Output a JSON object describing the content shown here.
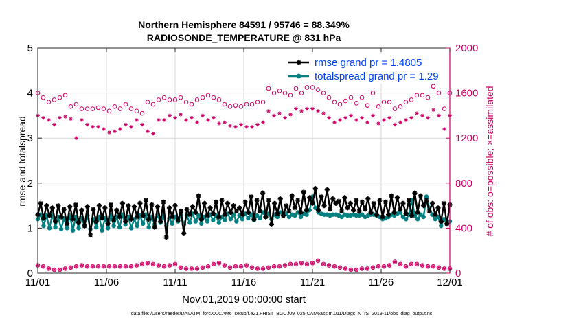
{
  "chart_data": {
    "type": "line",
    "title": "Northern Hemisphere 84591 / 95746 = 88.349%",
    "subtitle": "RADIOSONDE_TEMPERATURE @ 831 hPa",
    "xlabel": "Nov.01,2019 00:00:00 start",
    "ylabel_left": "rmse and totalspread",
    "ylabel_right": "# of obs: o=possible; ×=assimilated",
    "footnote": "data file: /Users/raeder/DAI/ATM_forcXX/CAM6_setup/f.e21.FHIST_BGC.f09_025.CAM6assim.011/Diags_NTrS_2019-11/obs_diag_output.nc",
    "xlim": [
      0,
      30
    ],
    "ylim_left": [
      0,
      5
    ],
    "ylim_right": [
      0,
      2000
    ],
    "x_ticks": [
      0,
      5,
      10,
      15,
      20,
      25,
      30
    ],
    "x_tick_labels": [
      "11/01",
      "11/06",
      "11/11",
      "11/16",
      "11/21",
      "11/26",
      "12/01"
    ],
    "y_ticks_left": [
      0,
      1,
      2,
      3,
      4,
      5
    ],
    "y_ticks_right": [
      0,
      400,
      800,
      1200,
      1600,
      2000
    ],
    "grid": true,
    "legend_position": "top-right",
    "colors": {
      "rmse": "#000000",
      "spread": "#008080",
      "obs": "#cc0066",
      "legend_text": "#0044ee"
    },
    "series": [
      {
        "name": "rmse grand pr = 1.4805",
        "color": "#000000",
        "marker": "star",
        "values": [
          1.3,
          1.55,
          1.22,
          1.5,
          1.28,
          1.45,
          1.15,
          1.5,
          1.25,
          1.42,
          1.1,
          1.48,
          1.2,
          1.52,
          1.12,
          1.4,
          1.05,
          1.48,
          0.85,
          1.42,
          1.15,
          1.5,
          1.22,
          1.45,
          1.1,
          1.52,
          1.18,
          1.4,
          1.25,
          1.55,
          1.15,
          1.5,
          1.2,
          1.48,
          1.25,
          1.55,
          1.28,
          1.62,
          1.2,
          1.52,
          1.02,
          1.48,
          1.15,
          1.58,
          0.8,
          1.45,
          1.25,
          1.5,
          1.18,
          1.38,
          0.88,
          1.42,
          1.3,
          1.48,
          1.35,
          1.72,
          1.2,
          1.55,
          1.28,
          1.45,
          1.32,
          1.58,
          1.25,
          1.62,
          1.3,
          1.55,
          1.35,
          1.5,
          1.38,
          1.45,
          1.3,
          1.58,
          1.35,
          1.7,
          1.2,
          1.62,
          1.38,
          1.78,
          1.25,
          1.62,
          1.08,
          1.55,
          1.32,
          1.65,
          1.28,
          1.5,
          1.38,
          1.72,
          1.45,
          1.62,
          1.35,
          1.8,
          1.4,
          1.68,
          1.55,
          1.88,
          1.4,
          1.7,
          1.5,
          1.85,
          1.42,
          1.65,
          1.55,
          1.6,
          1.38,
          1.68,
          1.45,
          1.55,
          1.4,
          1.62,
          1.38,
          1.58,
          1.42,
          1.65,
          1.35,
          1.55,
          1.3,
          1.62,
          1.25,
          1.58,
          1.3,
          1.72,
          1.35,
          1.68,
          1.42,
          1.55,
          1.32,
          1.62,
          1.28,
          1.78,
          1.35,
          1.72,
          1.5,
          1.62,
          1.38,
          1.55,
          1.3,
          1.45,
          1.15,
          1.55,
          1.1,
          1.52
        ]
      },
      {
        "name": "totalspread grand pr = 1.29",
        "color": "#008080",
        "marker": "dot",
        "values": [
          1.2,
          1.3,
          1.05,
          1.28,
          1.0,
          1.3,
          1.02,
          1.25,
          0.98,
          1.22,
          1.0,
          1.28,
          0.95,
          1.25,
          1.0,
          1.22,
          1.05,
          1.28,
          0.98,
          1.2,
          1.02,
          1.25,
          0.95,
          1.22,
          1.0,
          1.28,
          1.05,
          1.25,
          1.02,
          1.3,
          1.08,
          1.25,
          1.0,
          1.2,
          1.05,
          1.28,
          1.1,
          1.3,
          1.02,
          1.25,
          1.08,
          1.3,
          1.12,
          1.28,
          1.05,
          1.22,
          1.1,
          1.25,
          1.15,
          1.3,
          1.08,
          1.28,
          1.12,
          1.32,
          1.15,
          1.28,
          1.1,
          1.25,
          1.15,
          1.3,
          1.18,
          1.28,
          1.12,
          1.25,
          1.18,
          1.32,
          1.2,
          1.3,
          1.15,
          1.28,
          1.2,
          1.32,
          1.22,
          1.3,
          1.18,
          1.28,
          1.22,
          1.35,
          1.25,
          1.32,
          1.2,
          1.3,
          1.25,
          1.35,
          1.28,
          1.32,
          1.25,
          1.3,
          1.28,
          1.35,
          1.25,
          1.32,
          1.3,
          1.4,
          1.7,
          1.45,
          1.35,
          1.32,
          1.3,
          1.3,
          1.28,
          1.3,
          1.3,
          1.28,
          1.25,
          1.3,
          1.28,
          1.28,
          1.3,
          1.28,
          1.28,
          1.3,
          1.25,
          1.28,
          1.3,
          1.3,
          1.28,
          1.25,
          1.2,
          1.22,
          1.25,
          1.3,
          1.28,
          1.32,
          1.35,
          1.25,
          1.2,
          1.3,
          1.62,
          1.28,
          1.2,
          1.3,
          1.25,
          1.7,
          1.45,
          1.3,
          1.2,
          1.25,
          1.05,
          1.2,
          1.08,
          1.15
        ]
      }
    ],
    "obs_possible": [
      1600,
      1560,
      1520,
      1540,
      1560,
      1580,
      1480,
      1500,
      1460,
      1460,
      1460,
      1470,
      1460,
      1440,
      1480,
      1460,
      1500,
      1460,
      1440,
      1420,
      1520,
      1500,
      1540,
      1560,
      1540,
      1540,
      1560,
      1520,
      1500,
      1540,
      1560,
      1580,
      1560,
      1540,
      1500,
      1480,
      1490,
      1480,
      1500,
      1500,
      1520,
      1520,
      1640,
      1600,
      1620,
      1600,
      1580,
      1640,
      1600,
      1650,
      1650,
      1630,
      1600,
      1560,
      1520,
      1500,
      1530,
      1560,
      1510,
      1560,
      1490,
      1600,
      1480,
      1520,
      1520,
      1460,
      1480,
      1520,
      1540,
      1580,
      1580,
      1560,
      1660,
      1600,
      1460,
      1600
    ],
    "obs_assimilated": [
      1400,
      1380,
      1360,
      1320,
      1380,
      1390,
      1370,
      1200,
      1360,
      1320,
      1300,
      1300,
      1280,
      1250,
      1260,
      1280,
      1320,
      1300,
      1360,
      1320,
      1260,
      1240,
      1360,
      1360,
      1400,
      1380,
      1410,
      1360,
      1380,
      1340,
      1400,
      1360,
      1380,
      1330,
      1340,
      1310,
      1300,
      1320,
      1300,
      1300,
      1320,
      1340,
      1440,
      1400,
      1420,
      1380,
      1410,
      1460,
      1440,
      1460,
      1460,
      1440,
      1420,
      1380,
      1340,
      1360,
      1380,
      1400,
      1360,
      1380,
      1340,
      1400,
      1330,
      1360,
      1380,
      1320,
      1340,
      1360,
      1380,
      1420,
      1400,
      1380,
      1450,
      1400,
      1280,
      1400
    ],
    "obs_assimilated_low": [
      70,
      60,
      40,
      30,
      30,
      40,
      50,
      60,
      70,
      60,
      60,
      60,
      60,
      60,
      60,
      60,
      60,
      60,
      70,
      80,
      90,
      80,
      70,
      60,
      70,
      80,
      50,
      40,
      40,
      40,
      50,
      60,
      80,
      90,
      70,
      50,
      60,
      60,
      70,
      50,
      40,
      40,
      50,
      60,
      60,
      70,
      80,
      80,
      90,
      80,
      90,
      110,
      80,
      70,
      60,
      50,
      40,
      30,
      30,
      40,
      40,
      50,
      60,
      60,
      70,
      100,
      80,
      60,
      80,
      80,
      70,
      60,
      60,
      50,
      40,
      40
    ]
  }
}
